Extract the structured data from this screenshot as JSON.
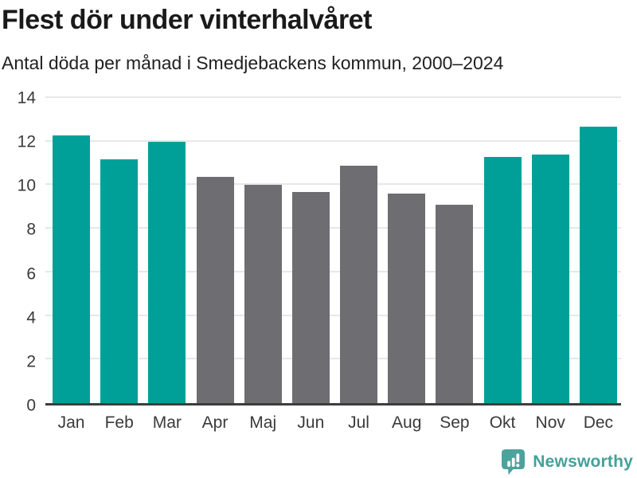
{
  "header": {
    "title": "Flest dör under vinterhalvåret",
    "subtitle": "Antal döda per månad i Smedjebackens kommun, 2000–2024"
  },
  "chart_data": {
    "type": "bar",
    "title": "Flest dör under vinterhalvåret",
    "subtitle": "Antal döda per månad i Smedjebackens kommun, 2000–2024",
    "categories": [
      "Jan",
      "Feb",
      "Mar",
      "Apr",
      "Maj",
      "Jun",
      "Jul",
      "Aug",
      "Sep",
      "Okt",
      "Nov",
      "Dec"
    ],
    "values": [
      12.3,
      11.2,
      12.0,
      10.4,
      10.0,
      9.7,
      10.9,
      9.6,
      9.1,
      11.3,
      11.4,
      12.7
    ],
    "bar_groups": [
      "winter",
      "winter",
      "winter",
      "summer",
      "summer",
      "summer",
      "summer",
      "summer",
      "summer",
      "winter",
      "winter",
      "winter"
    ],
    "palette": {
      "winter": "#00a099",
      "summer": "#6e6d72"
    },
    "xlabel": "",
    "ylabel": "",
    "ylim": [
      0,
      14
    ],
    "yticks": [
      0,
      2,
      4,
      6,
      8,
      10,
      12,
      14
    ],
    "grid": true,
    "legend": false,
    "gridline_color": "#e7e7e7",
    "axis_line_color": "#3d3d3d"
  },
  "footer": {
    "brand": "Newsworthy",
    "logo_icon": "bar-chart-speech-bubble-icon",
    "brand_color": "#43a19a"
  }
}
